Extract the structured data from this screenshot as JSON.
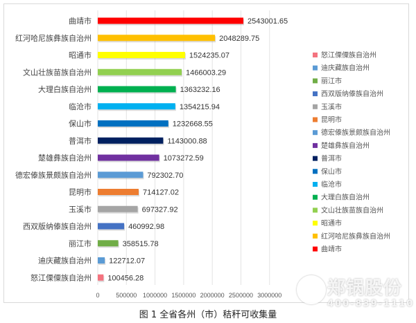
{
  "chart_data": {
    "type": "bar",
    "orientation": "horizontal",
    "categories": [
      "曲靖市",
      "红河哈尼族彝族自治州",
      "昭通市",
      "文山壮族苗族自治州",
      "大理白族自治州",
      "临沧市",
      "保山市",
      "普洱市",
      "楚雄彝族自治州",
      "德宏傣族景颇族自治州",
      "昆明市",
      "玉溪市",
      "西双版纳傣族自治州",
      "丽江市",
      "迪庆藏族自治州",
      "怒江傈僳族自治州"
    ],
    "values": [
      2543001.65,
      2048289.75,
      1524235.07,
      1466003.29,
      1363232.16,
      1354215.94,
      1232668.55,
      1143000.88,
      1073272.59,
      792302.7,
      714127.02,
      697327.92,
      460992.98,
      358515.78,
      122712.07,
      100456.28
    ],
    "value_labels": [
      "2543001.65",
      "2048289.75",
      "1524235.07",
      "1466003.29",
      "1363232.16",
      "1354215.94",
      "1232668.55",
      "1143000.88",
      "1073272.59",
      "792302.70",
      "714127.02",
      "697327.92",
      "460992.98",
      "358515.78",
      "122712.07",
      "100456.28"
    ],
    "colors": [
      "#ff0000",
      "#ffc000",
      "#ffff00",
      "#92d050",
      "#00b050",
      "#00b0f0",
      "#0070c0",
      "#002060",
      "#7030a0",
      "#5b9bd5",
      "#ed7d31",
      "#a5a5a5",
      "#4472c4",
      "#70ad47",
      "#5b9bd5",
      "#f4737f"
    ],
    "xlim": [
      0,
      3000000
    ],
    "xticks": [
      "0",
      "500000",
      "1000000",
      "1500000",
      "2000000",
      "2500000",
      "3000000"
    ],
    "grid": true,
    "legend_placement": "right",
    "legend": [
      "怒江傈僳族自治州",
      "迪庆藏族自治州",
      "丽江市",
      "西双版纳傣族自治州",
      "玉溪市",
      "昆明市",
      "德宏傣族景颇族自治州",
      "楚雄彝族自治州",
      "普洱市",
      "保山市",
      "临沧市",
      "大理白族自治州",
      "文山壮族苗族自治州",
      "昭通市",
      "红河哈尼族彝族自治州",
      "曲靖市"
    ],
    "title": "图 1  全省各州（市）秸秆可收集量"
  },
  "watermark": {
    "logo": "郑锅股份",
    "phone": "400-839-1110"
  }
}
